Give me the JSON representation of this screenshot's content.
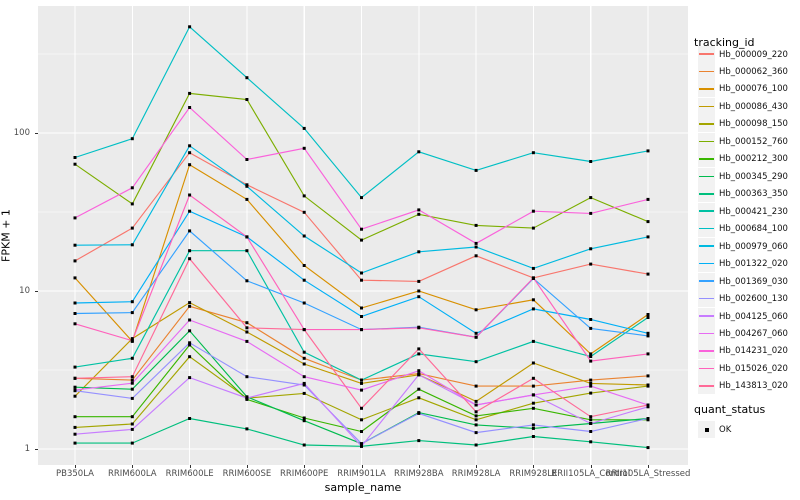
{
  "chart_data": {
    "type": "line",
    "title": "",
    "xlabel": "sample_name",
    "ylabel": "FPKM + 1",
    "y_scale": "log10",
    "ylim": [
      1,
      630
    ],
    "yticks": [
      1,
      10,
      100
    ],
    "grid": true,
    "panel_bg": "#EBEBEB",
    "grid_major_color": "#FFFFFF",
    "grid_minor_color": "#F5F5F5",
    "point_shape": "filled-square",
    "point_color": "#000000",
    "legend_position": "right",
    "categories": [
      "PB350LA",
      "RRIM600LA",
      "RRIM600LE",
      "RRIM600SE",
      "RRIM600PE",
      "RRIM901LA",
      "RRIM928BA",
      "RRIM928LA",
      "RRIM928LE",
      "RRII105LA_Control",
      "RRII105LA_Stressed"
    ],
    "series": [
      {
        "name": "Hb_000009_220",
        "color": "#F8766D",
        "values": [
          15.5,
          25,
          75,
          47,
          31.5,
          11.7,
          11.5,
          16.7,
          12.1,
          14.8,
          12.8
        ]
      },
      {
        "name": "Hb_000062_360",
        "color": "#EA8331",
        "values": [
          2.8,
          2.73,
          8.0,
          6.3,
          3.75,
          2.73,
          3.0,
          2.5,
          2.5,
          2.73,
          2.9
        ]
      },
      {
        "name": "Hb_000076_100",
        "color": "#D89000",
        "values": [
          12.1,
          4.8,
          63,
          38,
          14.5,
          7.8,
          10,
          7.6,
          8.8,
          4.0,
          7.1
        ]
      },
      {
        "name": "Hb_000086_430",
        "color": "#C09B00",
        "values": [
          2.16,
          5.0,
          8.45,
          5.5,
          3.45,
          2.6,
          2.95,
          2.0,
          3.5,
          2.6,
          2.54
        ]
      },
      {
        "name": "Hb_000098_150",
        "color": "#A3A500",
        "values": [
          1.37,
          1.44,
          3.84,
          2.1,
          2.25,
          1.53,
          2.11,
          1.53,
          1.95,
          2.26,
          2.5
        ]
      },
      {
        "name": "Hb_000152_760",
        "color": "#7CAE00",
        "values": [
          63.5,
          35.6,
          178,
          163,
          40,
          21,
          30.6,
          26,
          25,
          39,
          27.5
        ]
      },
      {
        "name": "Hb_000212_300",
        "color": "#39B600",
        "values": [
          1.6,
          1.6,
          4.55,
          2.06,
          1.57,
          1.29,
          2.39,
          1.62,
          1.81,
          1.53,
          1.53
        ]
      },
      {
        "name": "Hb_000345_290",
        "color": "#00BB4E",
        "values": [
          2.46,
          2.39,
          5.6,
          2.14,
          1.51,
          1.08,
          1.7,
          1.42,
          1.35,
          1.45,
          1.56
        ]
      },
      {
        "name": "Hb_000363_350",
        "color": "#00BF7D",
        "values": [
          1.09,
          1.09,
          1.56,
          1.34,
          1.06,
          1.04,
          1.13,
          1.06,
          1.2,
          1.11,
          1.02
        ]
      },
      {
        "name": "Hb_000421_230",
        "color": "#00C1A3",
        "values": [
          3.3,
          3.75,
          18,
          18,
          4.1,
          2.73,
          4.0,
          3.57,
          4.8,
          3.85,
          6.8
        ]
      },
      {
        "name": "Hb_000684_100",
        "color": "#00BFC4",
        "values": [
          70,
          92,
          470,
          224,
          107,
          39,
          76,
          58,
          75,
          66,
          77
        ]
      },
      {
        "name": "Hb_000979_060",
        "color": "#00BAE0",
        "values": [
          19.5,
          19.6,
          83,
          46,
          22.3,
          13,
          17.7,
          19,
          13.9,
          18.5,
          22
        ]
      },
      {
        "name": "Hb_001322_020",
        "color": "#00B0F6",
        "values": [
          8.4,
          8.55,
          32,
          22,
          11.7,
          6.9,
          9.2,
          5.4,
          7.7,
          6.6,
          5.4
        ]
      },
      {
        "name": "Hb_001369_030",
        "color": "#35A2FF",
        "values": [
          7.2,
          7.3,
          24,
          11.6,
          8.4,
          5.7,
          5.9,
          5.1,
          12,
          5.8,
          5.2
        ]
      },
      {
        "name": "Hb_002600_130",
        "color": "#9590FF",
        "values": [
          2.34,
          2.09,
          4.7,
          2.87,
          2.54,
          1.08,
          1.68,
          1.27,
          1.42,
          1.29,
          1.56
        ]
      },
      {
        "name": "Hb_004125_060",
        "color": "#C77CFF",
        "values": [
          1.24,
          1.33,
          2.83,
          2.1,
          2.6,
          1.04,
          2.95,
          1.9,
          2.2,
          1.45,
          1.85
        ]
      },
      {
        "name": "Hb_004267_060",
        "color": "#E76BF3",
        "values": [
          2.36,
          2.61,
          6.55,
          4.8,
          2.87,
          2.36,
          3.13,
          1.9,
          2.2,
          2.5,
          1.9
        ]
      },
      {
        "name": "Hb_014231_020",
        "color": "#FA62DB",
        "values": [
          29,
          45,
          145,
          68,
          80,
          24.6,
          32.6,
          20,
          32,
          31,
          38
        ]
      },
      {
        "name": "Hb_015026_020",
        "color": "#FF62BC",
        "values": [
          6.2,
          4.85,
          40.5,
          22,
          5.7,
          5.7,
          5.85,
          5.1,
          12.1,
          3.6,
          4.0
        ]
      },
      {
        "name": "Hb_143813_020",
        "color": "#FF6A98",
        "values": [
          2.8,
          2.87,
          16,
          5.85,
          5.7,
          1.81,
          4.3,
          1.72,
          2.8,
          1.6,
          1.9
        ]
      }
    ],
    "legend": {
      "color_title": "tracking_id",
      "shape_title": "quant_status",
      "shape_items": [
        {
          "label": "OK",
          "shape": "filled-square",
          "color": "#000000"
        }
      ]
    }
  }
}
